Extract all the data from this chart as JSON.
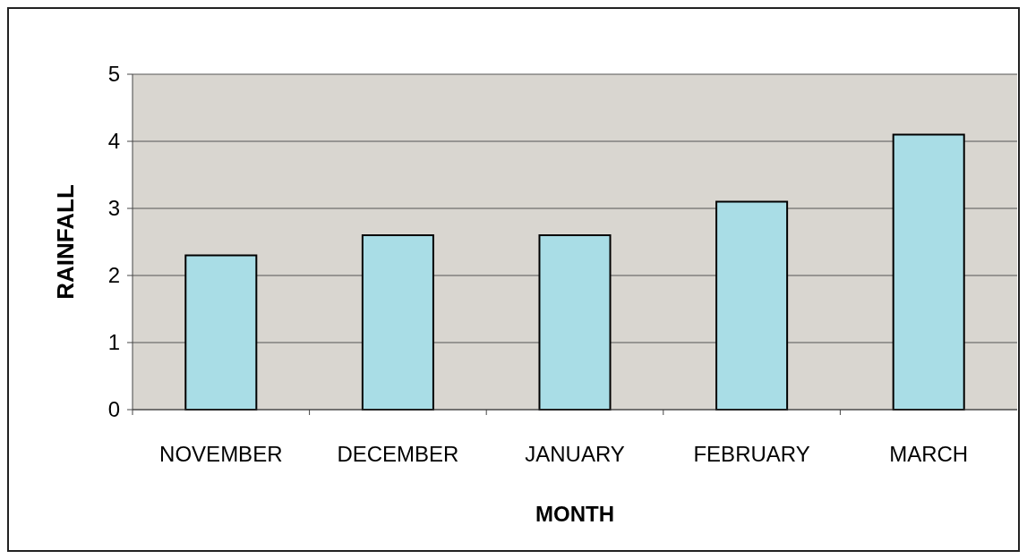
{
  "chart_data": {
    "type": "bar",
    "xlabel": "MONTH",
    "ylabel": "RAINFALL",
    "categories": [
      "NOVEMBER",
      "DECEMBER",
      "JANUARY",
      "FEBRUARY",
      "MARCH"
    ],
    "values": [
      2.3,
      2.6,
      2.6,
      3.1,
      4.1
    ],
    "color": "#a9dde6",
    "ylim": [
      0,
      5
    ],
    "yticks": [
      0,
      1,
      2,
      3,
      4,
      5
    ],
    "grid": "y"
  }
}
